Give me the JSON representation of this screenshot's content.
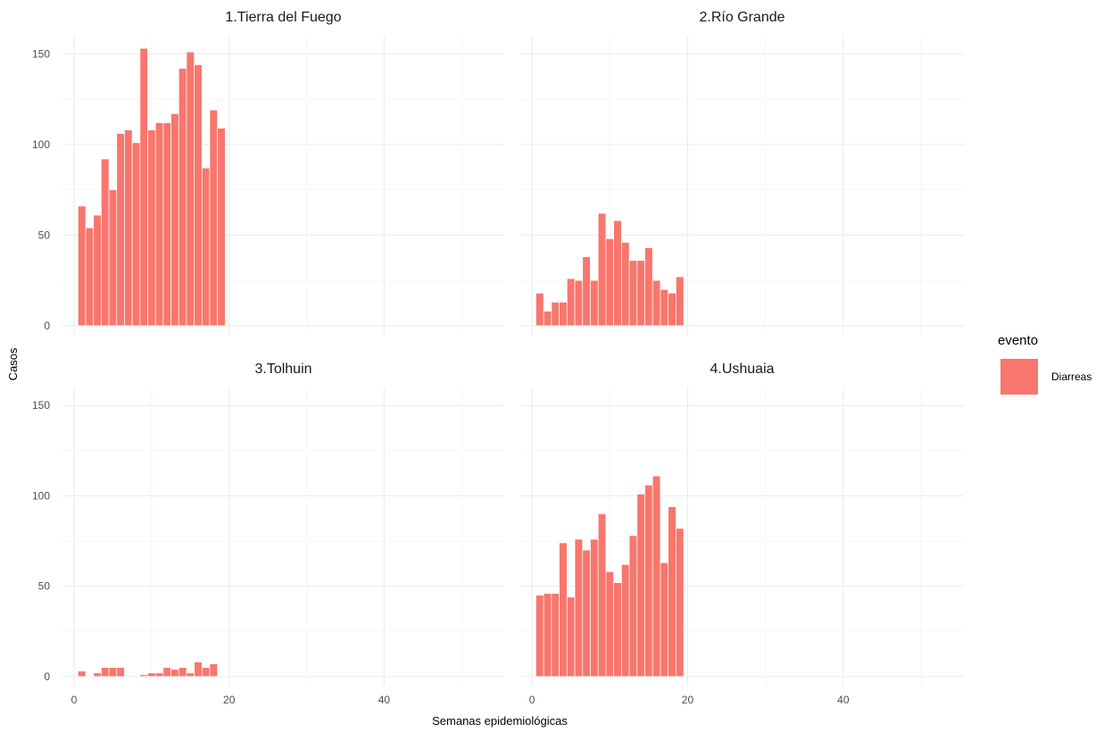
{
  "chart_data": {
    "type": "bar",
    "layout": "facet-2x2",
    "xlabel": "Semanas epidemiológicas",
    "ylabel": "Casos",
    "xlim": [
      -1.5,
      55.5
    ],
    "ylim": [
      -5,
      160
    ],
    "x_ticks": [
      0,
      20,
      40
    ],
    "y_ticks": [
      0,
      50,
      100,
      150
    ],
    "grid": true,
    "bar_color": "#F8766D",
    "legend": {
      "title": "evento",
      "placement": "right",
      "entries": [
        {
          "label": "Diarreas",
          "color": "#F8766D"
        }
      ]
    },
    "x": [
      1,
      2,
      3,
      4,
      5,
      6,
      7,
      8,
      9,
      10,
      11,
      12,
      13,
      14,
      15,
      16,
      17,
      18,
      19
    ],
    "panels": [
      {
        "title": "1.Tierra del Fuego",
        "values": [
          66,
          54,
          61,
          92,
          75,
          106,
          108,
          101,
          153,
          108,
          112,
          112,
          117,
          142,
          151,
          144,
          87,
          119,
          109
        ]
      },
      {
        "title": "2.Río Grande",
        "values": [
          18,
          8,
          13,
          13,
          26,
          25,
          38,
          25,
          62,
          48,
          58,
          46,
          36,
          36,
          43,
          25,
          20,
          18,
          27
        ]
      },
      {
        "title": "3.Tolhuin",
        "values": [
          3,
          0,
          2,
          5,
          5,
          5,
          0,
          0,
          1,
          2,
          2,
          5,
          4,
          5,
          2,
          8,
          5,
          7,
          0
        ]
      },
      {
        "title": "4.Ushuaia",
        "values": [
          45,
          46,
          46,
          74,
          44,
          76,
          70,
          76,
          90,
          58,
          52,
          62,
          78,
          101,
          106,
          111,
          63,
          94,
          82
        ]
      }
    ]
  }
}
